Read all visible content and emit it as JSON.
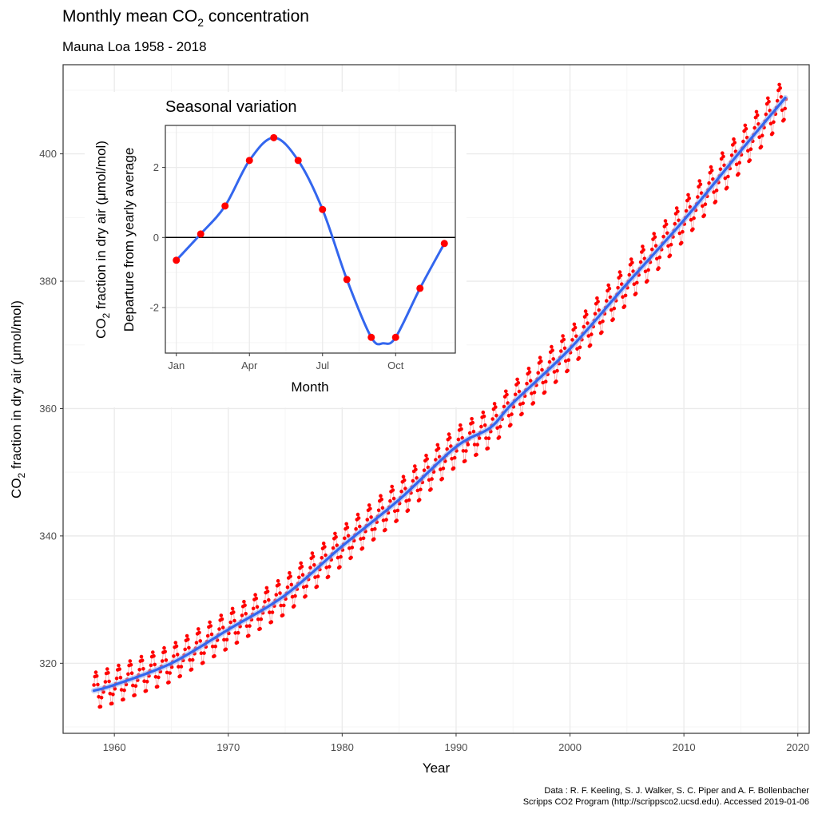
{
  "header": {
    "title_main": "Monthly mean CO",
    "title_sub": "2",
    "title_end": " concentration",
    "subtitle": "Mauna Loa 1958 - 2018"
  },
  "caption": {
    "line1": "Data : R. F. Keeling, S. J. Walker, S. C. Piper and A. F. Bollenbacher",
    "line2": "Scripps CO2 Program (http://scrippsco2.ucsd.edu). Accessed  2019-01-06"
  },
  "colors": {
    "points": "#ff0000",
    "trend": "#3366ee",
    "trend_band": "#9fb6f0",
    "grid_major": "#ebebeb",
    "grid_minor": "#f5f5f5"
  },
  "chart_data": [
    {
      "type": "line",
      "name": "main",
      "title": "Monthly mean CO2 concentration",
      "subtitle": "Mauna Loa 1958 - 2018",
      "xlabel": "Year",
      "ylabel_parts": [
        "CO",
        "2",
        " fraction in dry air (",
        "μ",
        "mol/mol)"
      ],
      "xlim": [
        1955.5,
        2021
      ],
      "ylim": [
        309,
        414
      ],
      "xticks": [
        1960,
        1970,
        1980,
        1990,
        2000,
        2010,
        2020
      ],
      "yticks": [
        320,
        340,
        360,
        380,
        400
      ],
      "grid": true,
      "series": [
        {
          "kind": "scatter",
          "x_start": 1958.208,
          "x_step": 0.083333,
          "count": 730,
          "generator": "trend_plus_seasonal",
          "trend_points": [
            [
              1958.2,
              315.7
            ],
            [
              1960,
              316.6
            ],
            [
              1965,
              320.0
            ],
            [
              1970,
              325.3
            ],
            [
              1975,
              330.7
            ],
            [
              1980,
              338.4
            ],
            [
              1985,
              345.7
            ],
            [
              1990,
              354.0
            ],
            [
              1993,
              357.0
            ],
            [
              1995,
              360.9
            ],
            [
              2000,
              369.4
            ],
            [
              2005,
              379.6
            ],
            [
              2010,
              389.6
            ],
            [
              2015,
              400.5
            ],
            [
              2018.9,
              408.8
            ]
          ],
          "seasonal_amplitude_start": 2.8,
          "seasonal_amplitude_end": 3.2
        },
        {
          "kind": "trend",
          "trend_points": [
            [
              1958.2,
              315.7
            ],
            [
              1960,
              316.6
            ],
            [
              1965,
              320.0
            ],
            [
              1970,
              325.3
            ],
            [
              1975,
              330.7
            ],
            [
              1980,
              338.4
            ],
            [
              1985,
              345.7
            ],
            [
              1990,
              354.0
            ],
            [
              1993,
              357.0
            ],
            [
              1995,
              360.9
            ],
            [
              2000,
              369.4
            ],
            [
              2005,
              379.6
            ],
            [
              2010,
              389.6
            ],
            [
              2015,
              400.5
            ],
            [
              2018.9,
              408.8
            ]
          ]
        }
      ]
    },
    {
      "type": "line",
      "name": "inset",
      "title": "Seasonal variation",
      "xlabel": "Month",
      "ylabel_line1_parts": [
        "CO",
        "2",
        " fraction in dry air (",
        "μ",
        "mol/mol)"
      ],
      "ylabel_line2": "Departure from yearly average",
      "xlim": [
        0.55,
        12.45
      ],
      "ylim": [
        -3.3,
        3.2
      ],
      "xticks": [
        1,
        4,
        7,
        10
      ],
      "xticklabels": [
        "Jan",
        "Apr",
        "Jul",
        "Oct"
      ],
      "yticks": [
        -2,
        0,
        2
      ],
      "yticklabels": [
        "-2",
        "0",
        "2"
      ],
      "hline": 0,
      "grid": true,
      "x": [
        1,
        2,
        3,
        4,
        5,
        6,
        7,
        8,
        9,
        10,
        11,
        12
      ],
      "y": [
        -0.65,
        0.1,
        0.9,
        2.2,
        2.85,
        2.2,
        0.8,
        -1.2,
        -2.85,
        -2.85,
        -1.45,
        -0.17
      ],
      "smooth_minimum": -3.02
    }
  ]
}
